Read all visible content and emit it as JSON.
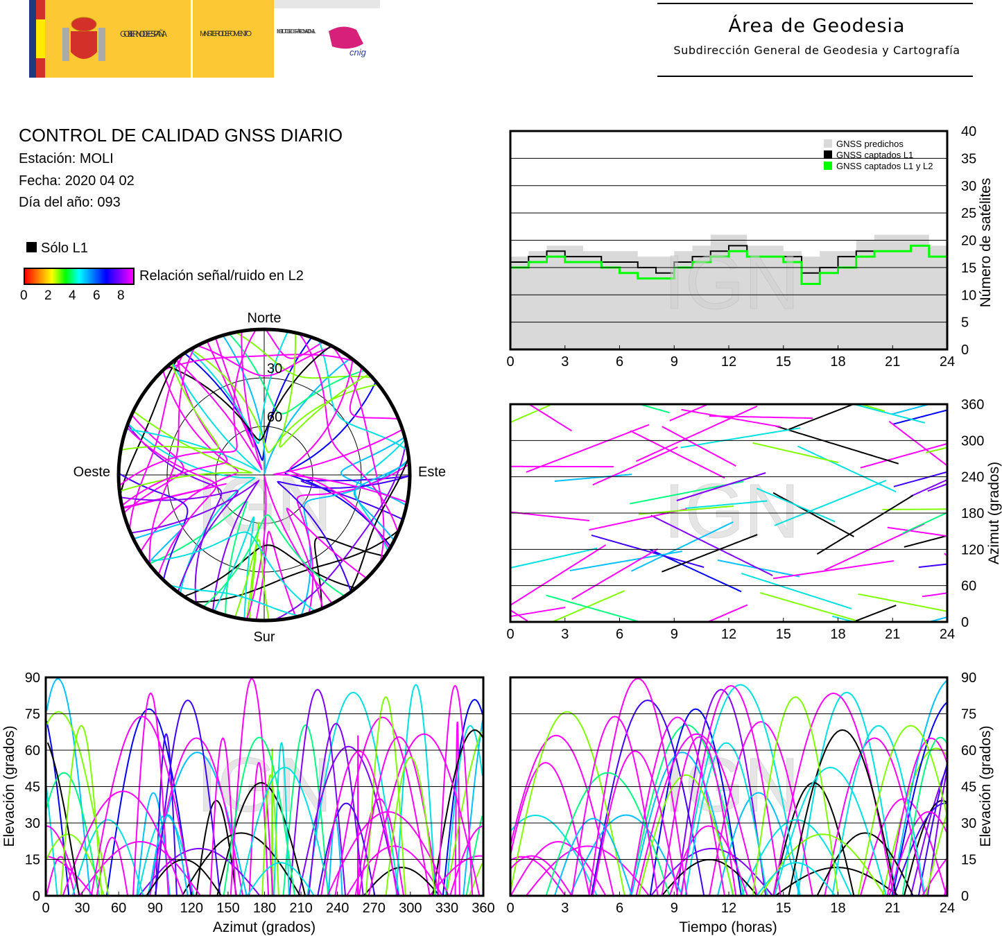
{
  "header": {
    "logo": {
      "gobierno": "GOBIERNO DE ESPAÑA",
      "ministerio": "MINISTERIO DE FOMENTO",
      "instituto": "INSTITUTO GEOGRÁFICO NACIONAL",
      "cnig": "cnig"
    },
    "title": "Área de Geodesia",
    "subtitle": "Subdirección General de Geodesia y Cartografía"
  },
  "report": {
    "title": "CONTROL DE CALIDAD GNSS DIARIO",
    "station": "Estación: MOLI",
    "date": "Fecha: 2020 04 02",
    "doy": "Día del año: 093"
  },
  "legend": {
    "only_l1": "Sólo L1",
    "snr_label": "Relación señal/ruido en L2",
    "snr_ticks": [
      "0",
      "2",
      "4",
      "6",
      "8"
    ],
    "snr_colors": [
      "#ff0000",
      "#ffff00",
      "#00ff00",
      "#00ffff",
      "#0000ff",
      "#ff00ff"
    ]
  },
  "watermark": "IGN",
  "chart_data": [
    {
      "type": "area",
      "id": "satellite-count",
      "x": [
        0,
        1,
        2,
        3,
        4,
        5,
        6,
        7,
        8,
        9,
        10,
        11,
        12,
        13,
        14,
        15,
        16,
        17,
        18,
        19,
        20,
        21,
        22,
        23,
        24
      ],
      "series": [
        {
          "name": "GNSS predichos",
          "color": "#d9d9d9",
          "values": [
            17,
            18,
            19,
            19,
            18,
            18,
            18,
            17,
            17,
            18,
            19,
            21,
            21,
            19,
            19,
            18,
            17,
            18,
            18,
            20,
            21,
            21,
            21,
            19,
            18
          ]
        },
        {
          "name": "GNSS captados L1",
          "color": "#000000",
          "values": [
            16,
            17,
            18,
            17,
            17,
            16,
            16,
            15,
            14,
            16,
            17,
            18,
            19,
            17,
            17,
            17,
            14,
            15,
            17,
            18,
            18,
            18,
            19,
            17,
            16
          ]
        },
        {
          "name": "GNSS captados L1 y L2",
          "color": "#00ff00",
          "values": [
            15,
            16,
            17,
            16,
            16,
            15,
            14,
            13,
            13,
            15,
            16,
            17,
            18,
            17,
            17,
            16,
            12,
            14,
            15,
            17,
            18,
            18,
            19,
            17,
            16
          ]
        }
      ],
      "xticks": [
        "0",
        "3",
        "6",
        "9",
        "12",
        "15",
        "18",
        "21",
        "24"
      ],
      "yticks": [
        "0",
        "5",
        "10",
        "15",
        "20",
        "25",
        "30",
        "35",
        "40"
      ],
      "xlim": [
        0,
        24
      ],
      "ylim": [
        0,
        40
      ],
      "ylabel": "Número de satélites",
      "legend_position": "top-right",
      "grid": true
    },
    {
      "type": "scatter",
      "id": "azimuth-time",
      "xticks": [
        "0",
        "3",
        "6",
        "9",
        "12",
        "15",
        "18",
        "21",
        "24"
      ],
      "yticks": [
        "0",
        "60",
        "120",
        "180",
        "240",
        "300",
        "360"
      ],
      "xlim": [
        0,
        24
      ],
      "ylim": [
        0,
        360
      ],
      "ylabel": "Azimut (grados)",
      "grid": true
    },
    {
      "type": "scatter",
      "id": "skyplot",
      "polar": true,
      "directions": {
        "north": "Norte",
        "south": "Sur",
        "west": "Oeste",
        "east": "Este"
      },
      "ring_labels": [
        "30",
        "60"
      ]
    },
    {
      "type": "scatter",
      "id": "elevation-azimuth",
      "xticks": [
        "0",
        "30",
        "60",
        "90",
        "120",
        "150",
        "180",
        "210",
        "240",
        "270",
        "300",
        "330",
        "360"
      ],
      "yticks": [
        "0",
        "15",
        "30",
        "45",
        "60",
        "75",
        "90"
      ],
      "xlim": [
        0,
        360
      ],
      "ylim": [
        0,
        90
      ],
      "xlabel": "Azimut (grados)",
      "ylabel": "Elevación (grados)",
      "grid": true
    },
    {
      "type": "scatter",
      "id": "elevation-time",
      "xticks": [
        "0",
        "3",
        "6",
        "9",
        "12",
        "15",
        "18",
        "21",
        "24"
      ],
      "yticks": [
        "0",
        "15",
        "30",
        "45",
        "60",
        "75",
        "90"
      ],
      "xlim": [
        0,
        24
      ],
      "ylim": [
        0,
        90
      ],
      "xlabel": "Tiempo (horas)",
      "ylabel": "Elevación (grados)",
      "grid": true
    }
  ]
}
